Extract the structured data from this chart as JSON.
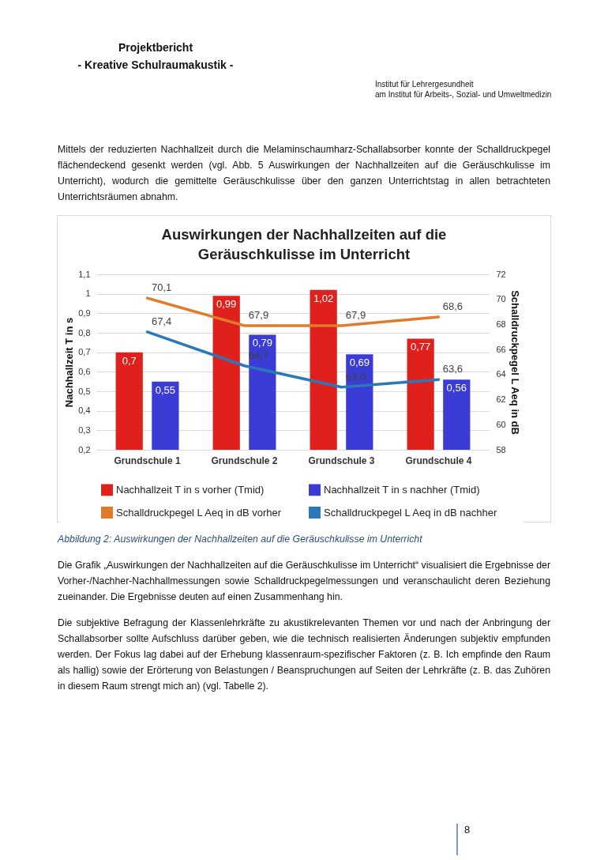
{
  "chart_data": {
    "type": "bar",
    "title": "Auswirkungen der Nachhallzeiten auf die Geräuschkulisse im Unterricht",
    "categories": [
      "Grundschule 1",
      "Grundschule 2",
      "Grundschule 3",
      "Grundschule 4"
    ],
    "series": [
      {
        "name": "Nachhallzeit T in s vorher (Tmid)",
        "color": "#e0201c",
        "values": [
          0.7,
          0.99,
          1.02,
          0.77
        ],
        "value_labels": [
          "0,7",
          "0,99",
          "1,02",
          "0,77"
        ]
      },
      {
        "name": "Nachhallzeit T in s nachher (Tmid)",
        "color": "#3b3bd6",
        "values": [
          0.55,
          0.79,
          0.69,
          0.56
        ],
        "value_labels": [
          "0,55",
          "0,79",
          "0,69",
          "0,56"
        ]
      },
      {
        "name": "Schalldruckpegel L Aeq in dB vorher",
        "type": "line",
        "axis": "y2",
        "color": "#e07b2a",
        "values": [
          70.1,
          67.9,
          67.9,
          68.6
        ],
        "value_labels": [
          "70,1",
          "67,9",
          "67,9",
          "68,6"
        ]
      },
      {
        "name": "Schalldruckpegel L Aeq in dB nachher",
        "type": "line",
        "axis": "y2",
        "color": "#2a78b8",
        "values": [
          67.4,
          64.7,
          63.0,
          63.6
        ],
        "value_labels": [
          "67,4",
          "64,7",
          "63,0",
          "63,6"
        ]
      }
    ],
    "ylabel": "Nachhallzeit T in s",
    "y2label": "Schalldruckpegel L Aeq in dB",
    "ylim": [
      0.2,
      1.1
    ],
    "yticks": [
      {
        "value": 0.2,
        "label": "0,2"
      },
      {
        "value": 0.3,
        "label": "0,3"
      },
      {
        "value": 0.4,
        "label": "0,4"
      },
      {
        "value": 0.5,
        "label": "0,5"
      },
      {
        "value": 0.6,
        "label": "0,6"
      },
      {
        "value": 0.7,
        "label": "0,7"
      },
      {
        "value": 0.8,
        "label": "0,8"
      },
      {
        "value": 0.9,
        "label": "0,9"
      },
      {
        "value": 1,
        "label": "1"
      },
      {
        "value": 1.1,
        "label": "1,1"
      }
    ],
    "y2lim": [
      58,
      72
    ],
    "y2ticks": [
      58,
      60,
      62,
      64,
      66,
      68,
      70,
      72
    ],
    "grid": "y",
    "legend": "bottom",
    "marker": "none",
    "line_style": "solid",
    "annotations": [
      "Projektbericht",
      "- Kreative Schulraumakustik -",
      "Institut für Lehrergesundheit",
      "am Institut für Arbeits-, Sozial- und Umweltmedizin",
      "Mittels der reduzierten Nachhallzeit durch die Melaminschaumharz-Schallabsorber konnte der Schalldruckpegel flächendeckend gesenkt werden (vgl. Abb. 5 Auswirkungen der Nachhallzeiten auf die Geräuschkulisse im Unterricht), wodurch die gemittelte Geräuschkulisse über den ganzen Unterrichtstag in allen betrachteten Unterrichtsräumen abnahm.",
      "Abbildung 2: Auswirkungen der Nachhallzeiten auf die Geräuschkulisse im Unterricht",
      "Die Grafik „Auswirkungen der Nachhallzeiten auf die Geräuschkulisse im Unterricht“ visualisiert die Ergebnisse der Vorher-/Nachher-Nachhallmessungen sowie Schalldruckpegelmessungen und veranschaulicht deren Beziehung zueinander. Die Ergebnisse deuten auf einen Zusammenhang hin.",
      "Die subjektive Befragung der Klassenlehrkräfte zu akustikrelevanten Themen vor und nach der Anbringung der Schallabsorber sollte Aufschluss darüber geben, wie die technisch realisierten Änderungen subjektiv empfunden werden. Der Fokus lag dabei auf der Erhebung klassenraum-spezifischer Faktoren (z. B. Ich empfinde den Raum als hallig) sowie der Erörterung von Belastungen / Beanspruchungen auf Seiten der Lehrkräfte (z. B. das Zuhören in diesem Raum strengt mich an) (vgl. Tabelle 2).",
      "8"
    ]
  }
}
